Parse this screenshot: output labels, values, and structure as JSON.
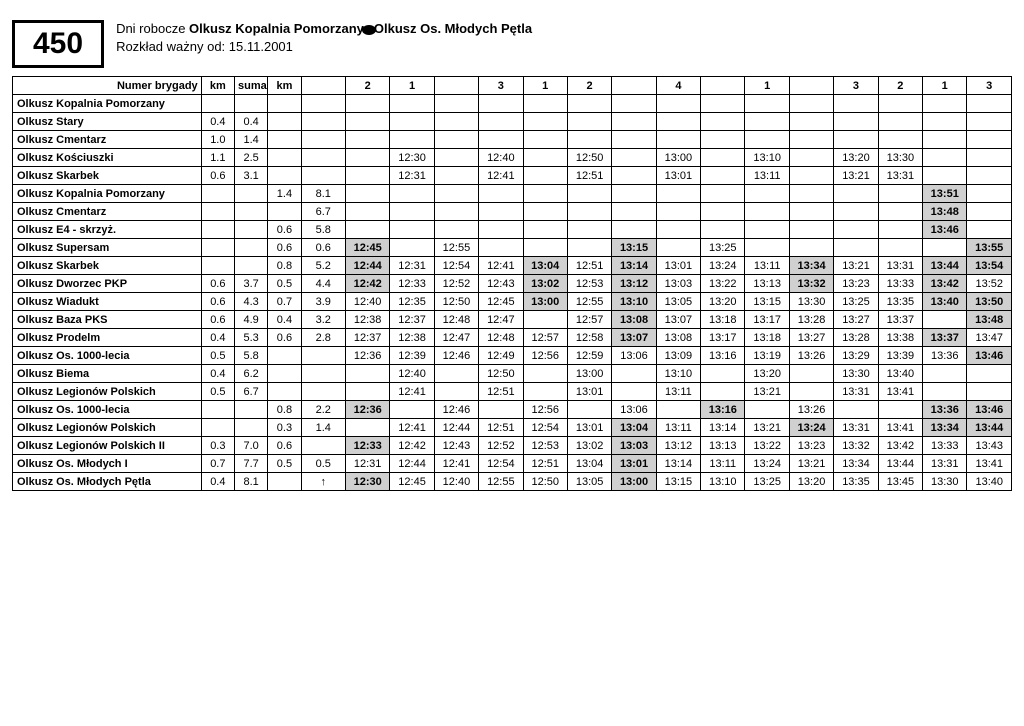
{
  "route_number": "450",
  "header_line1_pre": "Dni robocze ",
  "header_line1_b1": "Olkusz Kopalnia Pomorzany",
  "header_line1_b2": "Olkusz Os. Młodych Pętla",
  "header_line2": "Rozkład ważny od: 15.11.2001",
  "columns": {
    "stop": "Numer brygady",
    "km": "km",
    "suma": "suma",
    "km2": "km",
    "c1": "",
    "c2": "2",
    "c3": "1",
    "c4": "",
    "c5": "3",
    "c6": "1",
    "c7": "2",
    "c8": "",
    "c9": "4",
    "c10": "",
    "c11": "1",
    "c12": "",
    "c13": "3",
    "c14": "2",
    "c15": "1",
    "c16": "3"
  },
  "rows": [
    {
      "stop": "Olkusz Kopalnia Pomorzany",
      "km": "",
      "suma": "",
      "km2": "",
      "c": [
        "",
        "",
        "",
        "",
        "",
        "",
        "",
        "",
        "",
        "",
        "",
        "",
        "",
        "",
        "",
        ""
      ]
    },
    {
      "stop": "Olkusz Stary",
      "km": "0.4",
      "suma": "0.4",
      "km2": "",
      "c": [
        "",
        "",
        "",
        "",
        "",
        "",
        "",
        "",
        "",
        "",
        "",
        "",
        "",
        "",
        "",
        ""
      ]
    },
    {
      "stop": "Olkusz Cmentarz",
      "km": "1.0",
      "suma": "1.4",
      "km2": "",
      "c": [
        "",
        "",
        "",
        "",
        "",
        "",
        "",
        "",
        "",
        "",
        "",
        "",
        "",
        "",
        "",
        ""
      ]
    },
    {
      "stop": "Olkusz Kościuszki",
      "km": "1.1",
      "suma": "2.5",
      "km2": "",
      "c": [
        "",
        "",
        "12:30",
        "",
        "12:40",
        "",
        "12:50",
        "",
        "13:00",
        "",
        "13:10",
        "",
        "13:20",
        "13:30",
        "",
        ""
      ]
    },
    {
      "stop": "Olkusz Skarbek",
      "km": "0.6",
      "suma": "3.1",
      "km2": "",
      "c": [
        "",
        "",
        "12:31",
        "",
        "12:41",
        "",
        "12:51",
        "",
        "13:01",
        "",
        "13:11",
        "",
        "13:21",
        "13:31",
        "",
        ""
      ]
    },
    {
      "stop": "Olkusz Kopalnia Pomorzany",
      "km": "",
      "suma": "",
      "km2": "1.4",
      "c": [
        "8.1",
        "",
        "",
        "",
        "",
        "",
        "",
        "",
        "",
        "",
        "",
        "",
        "",
        "",
        "13:51",
        ""
      ],
      "sh": [
        14
      ]
    },
    {
      "stop": "Olkusz Cmentarz",
      "km": "",
      "suma": "",
      "km2": "",
      "c": [
        "6.7",
        "",
        "",
        "",
        "",
        "",
        "",
        "",
        "",
        "",
        "",
        "",
        "",
        "",
        "13:48",
        ""
      ],
      "sh": [
        14
      ]
    },
    {
      "stop": "Olkusz E4 - skrzyż.",
      "km": "",
      "suma": "",
      "km2": "0.6",
      "c": [
        "5.8",
        "",
        "",
        "",
        "",
        "",
        "",
        "",
        "",
        "",
        "",
        "",
        "",
        "",
        "13:46",
        ""
      ],
      "sh": [
        14
      ]
    },
    {
      "stop": "Olkusz Supersam",
      "km": "",
      "suma": "",
      "km2": "0.6",
      "c": [
        "0.6",
        "12:45",
        "",
        "12:55",
        "",
        "",
        "",
        "13:15",
        "",
        "13:25",
        "",
        "",
        "",
        "",
        "",
        "13:55"
      ],
      "sh": [
        1,
        7,
        15
      ]
    },
    {
      "stop": "Olkusz Skarbek",
      "km": "",
      "suma": "",
      "km2": "0.8",
      "c": [
        "5.2",
        "12:44",
        "12:31",
        "12:54",
        "12:41",
        "13:04",
        "12:51",
        "13:14",
        "13:01",
        "13:24",
        "13:11",
        "13:34",
        "13:21",
        "13:31",
        "13:44",
        "13:54"
      ],
      "sh": [
        1,
        5,
        7,
        11,
        14,
        15
      ]
    },
    {
      "stop": "Olkusz Dworzec PKP",
      "km": "0.6",
      "suma": "3.7",
      "km2": "0.5",
      "c": [
        "4.4",
        "12:42",
        "12:33",
        "12:52",
        "12:43",
        "13:02",
        "12:53",
        "13:12",
        "13:03",
        "13:22",
        "13:13",
        "13:32",
        "13:23",
        "13:33",
        "13:42",
        "13:52"
      ],
      "sh": [
        1,
        5,
        7,
        11,
        14
      ]
    },
    {
      "stop": "Olkusz Wiadukt",
      "km": "0.6",
      "suma": "4.3",
      "km2": "0.7",
      "c": [
        "3.9",
        "12:40",
        "12:35",
        "12:50",
        "12:45",
        "13:00",
        "12:55",
        "13:10",
        "13:05",
        "13:20",
        "13:15",
        "13:30",
        "13:25",
        "13:35",
        "13:40",
        "13:50"
      ],
      "sh": [
        5,
        7,
        14,
        15
      ]
    },
    {
      "stop": "Olkusz Baza PKS",
      "km": "0.6",
      "suma": "4.9",
      "km2": "0.4",
      "c": [
        "3.2",
        "12:38",
        "12:37",
        "12:48",
        "12:47",
        "",
        "12:57",
        "13:08",
        "13:07",
        "13:18",
        "13:17",
        "13:28",
        "13:27",
        "13:37",
        "",
        "13:48"
      ],
      "sh": [
        7,
        15
      ]
    },
    {
      "stop": "Olkusz Prodelm",
      "km": "0.4",
      "suma": "5.3",
      "km2": "0.6",
      "c": [
        "2.8",
        "12:37",
        "12:38",
        "12:47",
        "12:48",
        "12:57",
        "12:58",
        "13:07",
        "13:08",
        "13:17",
        "13:18",
        "13:27",
        "13:28",
        "13:38",
        "13:37",
        "13:47"
      ],
      "sh": [
        7,
        14
      ]
    },
    {
      "stop": "Olkusz Os. 1000-lecia",
      "km": "0.5",
      "suma": "5.8",
      "km2": "",
      "c": [
        "",
        "12:36",
        "12:39",
        "12:46",
        "12:49",
        "12:56",
        "12:59",
        "13:06",
        "13:09",
        "13:16",
        "13:19",
        "13:26",
        "13:29",
        "13:39",
        "13:36",
        "13:46"
      ],
      "sh": [
        15
      ]
    },
    {
      "stop": "Olkusz Biema",
      "km": "0.4",
      "suma": "6.2",
      "km2": "",
      "c": [
        "",
        "",
        "12:40",
        "",
        "12:50",
        "",
        "13:00",
        "",
        "13:10",
        "",
        "13:20",
        "",
        "13:30",
        "13:40",
        "",
        ""
      ]
    },
    {
      "stop": "Olkusz Legionów Polskich",
      "km": "0.5",
      "suma": "6.7",
      "km2": "",
      "c": [
        "",
        "",
        "12:41",
        "",
        "12:51",
        "",
        "13:01",
        "",
        "13:11",
        "",
        "13:21",
        "",
        "13:31",
        "13:41",
        "",
        ""
      ]
    },
    {
      "stop": "Olkusz Os. 1000-lecia",
      "km": "",
      "suma": "",
      "km2": "0.8",
      "c": [
        "2.2",
        "12:36",
        "",
        "12:46",
        "",
        "12:56",
        "",
        "13:06",
        "",
        "13:16",
        "",
        "13:26",
        "",
        "",
        "13:36",
        "13:46"
      ],
      "sh": [
        1,
        9,
        14,
        15
      ]
    },
    {
      "stop": "Olkusz Legionów Polskich",
      "km": "",
      "suma": "",
      "km2": "0.3",
      "c": [
        "1.4",
        "",
        "12:41",
        "12:44",
        "12:51",
        "12:54",
        "13:01",
        "13:04",
        "13:11",
        "13:14",
        "13:21",
        "13:24",
        "13:31",
        "13:41",
        "13:34",
        "13:44"
      ],
      "sh": [
        7,
        11,
        14,
        15
      ]
    },
    {
      "stop": "Olkusz Legionów Polskich II",
      "km": "0.3",
      "suma": "7.0",
      "km2": "0.6",
      "c": [
        "",
        "12:33",
        "12:42",
        "12:43",
        "12:52",
        "12:53",
        "13:02",
        "13:03",
        "13:12",
        "13:13",
        "13:22",
        "13:23",
        "13:32",
        "13:42",
        "13:33",
        "13:43"
      ],
      "sh": [
        1,
        7
      ]
    },
    {
      "stop": "Olkusz Os. Młodych I",
      "km": "0.7",
      "suma": "7.7",
      "km2": "0.5",
      "c": [
        "0.5",
        "12:31",
        "12:44",
        "12:41",
        "12:54",
        "12:51",
        "13:04",
        "13:01",
        "13:14",
        "13:11",
        "13:24",
        "13:21",
        "13:34",
        "13:44",
        "13:31",
        "13:41"
      ],
      "sh": [
        7
      ]
    },
    {
      "stop": "Olkusz Os. Młodych Pętla",
      "km": "0.4",
      "suma": "8.1",
      "km2": "",
      "c": [
        "↑",
        "12:30",
        "12:45",
        "12:40",
        "12:55",
        "12:50",
        "13:05",
        "13:00",
        "13:15",
        "13:10",
        "13:25",
        "13:20",
        "13:35",
        "13:45",
        "13:30",
        "13:40"
      ],
      "sh": [
        1,
        7
      ],
      "arrow": 0
    }
  ]
}
